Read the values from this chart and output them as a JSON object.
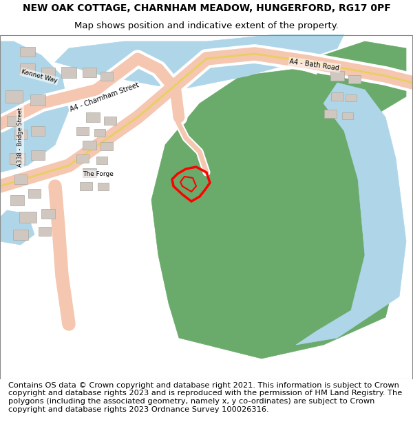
{
  "title_line1": "NEW OAK COTTAGE, CHARNHAM MEADOW, HUNGERFORD, RG17 0PF",
  "title_line2": "Map shows position and indicative extent of the property.",
  "footer_text": "Contains OS data © Crown copyright and database right 2021. This information is subject to Crown copyright and database rights 2023 and is reproduced with the permission of HM Land Registry. The polygons (including the associated geometry, namely x, y co-ordinates) are subject to Crown copyright and database rights 2023 Ordnance Survey 100026316.",
  "title_fontsize": 10,
  "footer_fontsize": 8.2,
  "fig_width": 6.0,
  "fig_height": 6.25,
  "map_bg": "#f0ece4",
  "road_color_main": "#f5c6b0",
  "road_color_yellow": "#e8d060",
  "water_color": "#aed6e8",
  "green_area": "#6aaa6a",
  "building_color": "#d0c8c0",
  "building_edge": "#aaa8a0",
  "plot_color": "#ff0000",
  "white": "#ffffff"
}
